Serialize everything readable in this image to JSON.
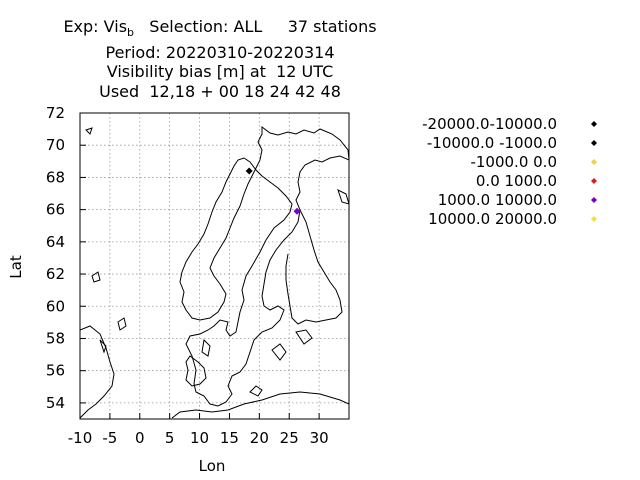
{
  "header": {
    "exp_prefix": "Exp: Vis",
    "exp_sub": "b",
    "selection": "Selection: ALL",
    "stations": "37 stations",
    "period": "Period: 20220310-20220314",
    "subtitle": "Visibility bias [m] at  12 UTC",
    "used": "Used  12,18 + 00 18 24 42 48"
  },
  "chart_data": {
    "type": "scatter",
    "xlabel": "Lon",
    "ylabel": "Lat",
    "xlim": [
      -10,
      35
    ],
    "ylim": [
      53,
      72
    ],
    "xticks": [
      -10,
      -5,
      0,
      5,
      10,
      15,
      20,
      25,
      30
    ],
    "yticks": [
      54,
      56,
      58,
      60,
      62,
      64,
      66,
      68,
      70,
      72
    ],
    "grid": true,
    "legend_position": "right",
    "legend": [
      {
        "label": "-20000.0-10000.0",
        "color": "#000000"
      },
      {
        "label": "-10000.0 -1000.0",
        "color": "#000000"
      },
      {
        "label": "-1000.0 0.0",
        "color": "#f2d23a"
      },
      {
        "label": "0.0 1000.0",
        "color": "#d42020"
      },
      {
        "label": "1000.0 10000.0",
        "color": "#7a00c8"
      },
      {
        "label": "10000.0 20000.0",
        "color": "#f2e040"
      }
    ],
    "points": [
      {
        "lon": 18.3,
        "lat": 68.4,
        "class": "-10000.0 -1000.0",
        "color": "#000000"
      },
      {
        "lon": 26.3,
        "lat": 65.9,
        "class": "1000.0 10000.0",
        "color": "#7a00c8"
      }
    ]
  }
}
